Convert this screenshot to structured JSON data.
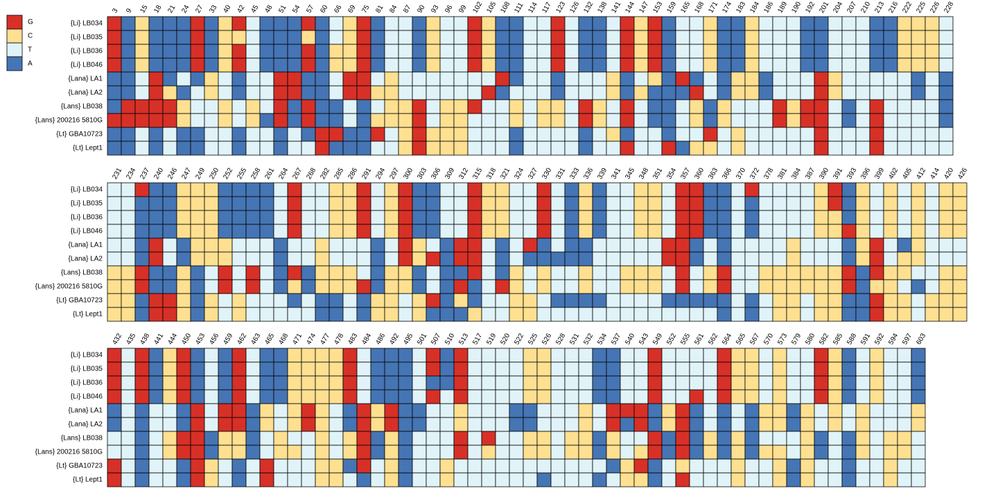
{
  "legend": [
    {
      "label": "G",
      "color": "#d73027"
    },
    {
      "label": "C",
      "color": "#fee090"
    },
    {
      "label": "T",
      "color": "#e0f3f8"
    },
    {
      "label": "A",
      "color": "#4575b4"
    }
  ],
  "rows": [
    "{Li} LB034",
    "{Li} LB035",
    "{Li} LB036",
    "{Li} LB046",
    "{Lana} LA1",
    "{Lana} LA2",
    "{Lans} LB038",
    "{Lans} 200216 5810G",
    "{Lt} GBA10723",
    "{Lt} Lept1"
  ],
  "panels": [
    {
      "positions": [
        3,
        9,
        15,
        18,
        21,
        24,
        27,
        33,
        40,
        42,
        45,
        48,
        51,
        54,
        57,
        60,
        66,
        69,
        75,
        81,
        84,
        87,
        90,
        93,
        96,
        99,
        102,
        105,
        108,
        111,
        114,
        117,
        123,
        126,
        132,
        138,
        141,
        144,
        147,
        153,
        159,
        165,
        168,
        171,
        174,
        183,
        184,
        186,
        189,
        190,
        192,
        201,
        204,
        207,
        210,
        213,
        216,
        222,
        225,
        226,
        228
      ],
      "cells": [
        "GACAAAGACGTAAAGATCGATTACTTGCAATTGTAATGCGATTCAACTTTAATTTAACCCT",
        "GACAAAGACCTAAACATCGATTACTTGCAATTGTAATGCGATTCAACTTTAATTTAACCCT",
        "GACAAAGACGTAAAGACCGATTACTTGCAATTGTAATGCGATTCAACTTTAATTTAACCCT",
        "GACAAAGACGTAAAGACCGATTACTTGCAATTGTAATGCGATTCAACTTTAATTTAACCCT",
        "AATGATACTATTGGAATGGTCTTTTTTTGATTATTTCATCAGATACCATTTGCTTTTTATA",
        "AATGCATCTATTGGAATGGCCTTTTTTGATTTATTTCACAAAGTACCATTTGCTTTTTATA",
        "AGGGGCTTCTCTGAGAATATCCGTCCGTTCTCCTGCTGTAATCACTTTGCGGTATGTTTTA",
        "GGGGGCTTCTCAGAGAATACCCGTCCTTTCTCCTGCTGTAATCACTTTGCGGTATGTTTTA",
        "AATATAATTATTATAGGAAGTCGCCCTTTATTTTATCATTATTGTCTTTTTGTTTGTTTTT",
        "AATATAATTATTATTGAAATTCGCCCTTTATTTTATTGTTGACCTCTTTTTGTTTGTTTTT"
      ]
    },
    {
      "positions": [
        231,
        234,
        237,
        240,
        246,
        247,
        249,
        250,
        252,
        255,
        258,
        261,
        264,
        267,
        268,
        282,
        285,
        286,
        291,
        294,
        297,
        300,
        303,
        306,
        309,
        312,
        315,
        318,
        321,
        324,
        327,
        330,
        331,
        333,
        336,
        339,
        341,
        345,
        348,
        351,
        354,
        357,
        360,
        363,
        366,
        370,
        372,
        378,
        381,
        384,
        387,
        390,
        391,
        393,
        396,
        399,
        402,
        405,
        412,
        414,
        420,
        426
      ],
      "cells": [
        "TTGAACCCAAAATGTTCCGTCGAATTGCCTTGTACATTCCTGGAATGTTTTCGACTCTCTCC",
        "TTAAACCCAAAATGTTCCGTCGAATTGCCTTGTACATTCCTGGAATATTTTCGACTCTCTCC",
        "TTAAACCCAAAATGTTCCGTCGAATTGCCTTGTACATTCCTGGAATATTTTCCACTCTCTCC",
        "TTAAACCCAAAATGTTCCGTCGAATTGCCTTGTACATTCCTGGAATATTTTCCGCTCTCTCC",
        "TTAGTACCCTTTATTCTTTATGCTAGGTATGATAATTTTTGGATATTTTCTTTACGTACTTT",
        "TTAGTACCCTTTATTCTTTATGCGAGGTATAAAAATTTTTGGATATTTTCTTTACGTCCTTT",
        "CCGAACATGTGTAGACCCTACCATAAGTACTCTTCTTCCCTGTCGTTCCCCCCGAGCCTTCC",
        "CCGAACATGTGTACACCCGACCATAGATGCTCTTCTTCCCTGTCGTTCCCCCCGACCTATCC",
        "CCAGGCACTCTTTATAATACCTCGACATTCCTAAAATTTTAAAAATATCCTCCAAGCCTCCC",
        "CCAGGCACTCTTTTTAATACCTCAAACTTCCTTTTTTTTTTTTTATATCCTCCAAGCCTCCC"
      ]
    },
    {
      "positions": [
        432,
        435,
        438,
        441,
        444,
        450,
        453,
        456,
        459,
        462,
        463,
        465,
        468,
        471,
        474,
        477,
        478,
        483,
        484,
        486,
        492,
        495,
        501,
        507,
        510,
        513,
        517,
        519,
        520,
        522,
        525,
        526,
        528,
        531,
        532,
        534,
        537,
        540,
        543,
        549,
        552,
        555,
        561,
        562,
        564,
        565,
        567,
        570,
        573,
        579,
        580,
        582,
        585,
        588,
        591,
        592,
        594,
        597,
        603
      ],
      "cells": [
        "GTGACGATAGTAACCCCGTAAATGAGTTTTCCTTTAATTGTTTTGCCTCTTGCATCTTA",
        "GTGACGATAGTAACCCCGTAAATGAGTTTTCCTTTAATTGTTTTGCCTCTTGCATCTTA",
        "GTGACGATAGTAACCCCGTAAATAAGTTTTCCTTTAATTGTTTTGCCTCTTGCATCTTA",
        "GTGACGATAGTAACCCCGTAAATGTGTTTTCCTTTAATTGTTGTGCCTCTTGCATCTTA",
        "ATATTAGTGGACTCGCTAGCGAATTCTTTAATTTCTGGGACGATATACCACTCTCTTTC",
        "ATATTAGTGGACTCGCTAGCGAATTCTTTAATTTCTGAGACGATATACCACTCTCTTTC",
        "TTATCGGACCATCTTCTCGACATTTGTGTTCCTCCACTTGAGACACATTTCATACTCCT",
        "TTATCGGACCATCCTCTCGACATTTGTCTTCCTCCACTCGAGACACACCTCATACTCCT",
        "GTATTAGCTATGTTTCCAGTCATTCTTTTTTTTTTTACGATCTTTCTTCACTTATTCTT",
        "GTATTAGCTATGTTTCCTATCATTCTTTTTTATTTATCCATGTTTCTTCACTTATTCTT"
      ]
    }
  ]
}
